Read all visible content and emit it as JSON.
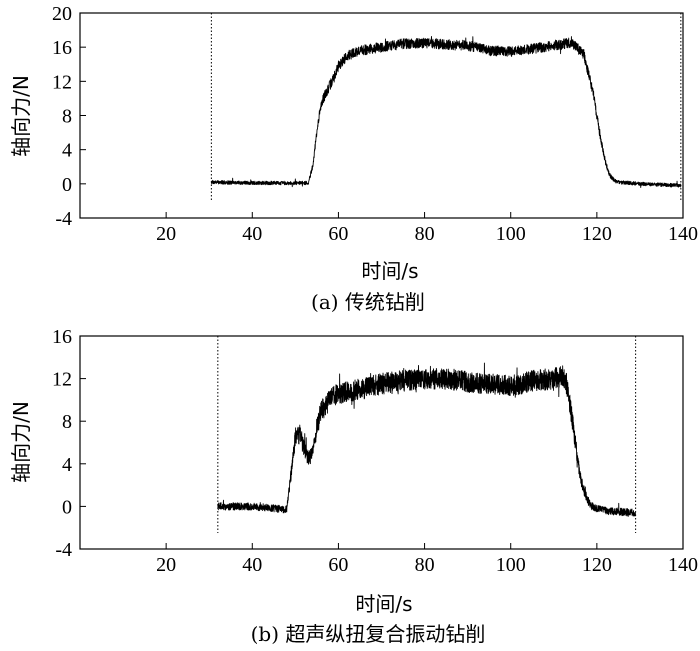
{
  "chart_data": [
    {
      "type": "line",
      "caption": "(a) 传统钻削",
      "xlabel": "时间/s",
      "ylabel": "轴向力/N",
      "xlim": [
        0,
        140
      ],
      "ylim": [
        -4,
        20
      ],
      "xticks": [
        20,
        40,
        60,
        80,
        100,
        120,
        140
      ],
      "yticks": [
        -4,
        0,
        4,
        8,
        12,
        16,
        20
      ],
      "markers_x": [
        30.5,
        139.5
      ],
      "series": [
        {
          "x": [
            30.5,
            40,
            50,
            53,
            54,
            55,
            56,
            57,
            58,
            59,
            60,
            62,
            65,
            70,
            75,
            80,
            85,
            90,
            95,
            100,
            105,
            110,
            114,
            117,
            118,
            119,
            120,
            121,
            122,
            123,
            124,
            125,
            130,
            139.5
          ],
          "y": [
            0.2,
            0.1,
            0.1,
            0.1,
            2.0,
            6.0,
            9.5,
            10.5,
            11.5,
            12.5,
            13.8,
            15.0,
            15.6,
            16.0,
            16.4,
            16.5,
            16.3,
            16.2,
            15.6,
            15.5,
            15.8,
            16.2,
            16.5,
            15.2,
            13.0,
            11.0,
            8.0,
            5.0,
            2.5,
            1.0,
            0.4,
            0.2,
            0.0,
            -0.2
          ],
          "noise": 0.6
        }
      ]
    },
    {
      "type": "line",
      "caption": "(b) 超声纵扭复合振动钻削",
      "xlabel": "时间/s",
      "ylabel": "轴向力/N",
      "xlim": [
        0,
        140
      ],
      "ylim": [
        -4,
        16
      ],
      "xticks": [
        20,
        40,
        60,
        80,
        100,
        120,
        140
      ],
      "yticks": [
        -4,
        0,
        4,
        8,
        12,
        16
      ],
      "markers_x": [
        32,
        129
      ],
      "series": [
        {
          "x": [
            32,
            40,
            48,
            49,
            50,
            51,
            52,
            53,
            54,
            55,
            56,
            58,
            60,
            65,
            70,
            75,
            80,
            85,
            90,
            95,
            100,
            105,
            110,
            112,
            113,
            114,
            115,
            116,
            117,
            118,
            119,
            120,
            122,
            125,
            129
          ],
          "y": [
            0.0,
            0.0,
            -0.3,
            3.0,
            6.5,
            6.8,
            5.5,
            4.5,
            5.0,
            7.5,
            9.0,
            10.0,
            10.6,
            11.0,
            11.5,
            11.8,
            12.0,
            12.0,
            11.7,
            11.5,
            11.3,
            11.8,
            12.0,
            12.2,
            11.5,
            9.0,
            6.0,
            3.0,
            1.5,
            0.5,
            0.0,
            -0.2,
            -0.4,
            -0.5,
            -0.6
          ],
          "noise": 1.0
        }
      ]
    }
  ]
}
